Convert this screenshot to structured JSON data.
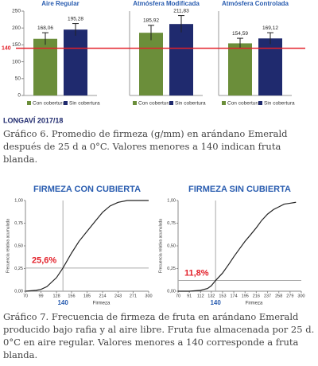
{
  "chart_data": [
    {
      "type": "bar",
      "categories": [
        "Aire Regular",
        "Atmósfera Modificada",
        "Atmósfera Controlada"
      ],
      "series": [
        {
          "name": "Con cobertura",
          "color": "#6b8e3a",
          "values": [
            168.06,
            185.92,
            154.59
          ],
          "value_labels": [
            "168,06",
            "185,92",
            "154,59"
          ],
          "errors": [
            18,
            22,
            15
          ]
        },
        {
          "name": "Sin cobertura",
          "color": "#1f2a6e",
          "values": [
            195.28,
            211.83,
            169.12
          ],
          "value_labels": [
            "195,28",
            "211,83",
            "169,12"
          ],
          "errors": [
            18,
            25,
            17
          ]
        }
      ],
      "ylim": [
        0,
        250
      ],
      "yticks": [
        0,
        50,
        100,
        150,
        200,
        250
      ],
      "reference_line": {
        "value": 140,
        "color": "#e3202a"
      }
    },
    {
      "type": "line",
      "title": "FIRMEZA CON CUBIERTA",
      "xlabel": "Firmeza",
      "ylabel": "Frecuencia relativa acumulada",
      "x": [
        70,
        90,
        99,
        110,
        128,
        140,
        156,
        170,
        185,
        200,
        214,
        228,
        243,
        260,
        271,
        300
      ],
      "series": [
        {
          "color": "#222222",
          "values": [
            0,
            0.01,
            0.02,
            0.05,
            0.15,
            0.256,
            0.42,
            0.55,
            0.66,
            0.77,
            0.87,
            0.94,
            0.98,
            1.0,
            1.0,
            1.0
          ]
        }
      ],
      "xlim": [
        70,
        300
      ],
      "ylim": [
        0,
        1
      ],
      "xticks": [
        70,
        99,
        128,
        156,
        185,
        214,
        243,
        271,
        300
      ],
      "yticks": [
        {
          "value": 0,
          "label": "0,00"
        },
        {
          "value": 0.25,
          "label": "0,25"
        },
        {
          "value": 0.5,
          "label": "0,50"
        },
        {
          "value": 0.75,
          "label": "0,75"
        },
        {
          "value": 1,
          "label": "1,00"
        }
      ],
      "marker_x": 140,
      "annotation": {
        "value": 0.256,
        "label": "25,6%"
      }
    },
    {
      "type": "line",
      "title": "FIRMEZA SIN CUBIERTA",
      "xlabel": "Firmeza",
      "ylabel": "Frecuencia relativa acumulada",
      "x": [
        70,
        91,
        112,
        125,
        132,
        140,
        153,
        165,
        174,
        185,
        195,
        205,
        216,
        226,
        237,
        248,
        258,
        268,
        279,
        290
      ],
      "series": [
        {
          "color": "#222222",
          "values": [
            0,
            0,
            0.01,
            0.03,
            0.06,
            0.118,
            0.2,
            0.3,
            0.38,
            0.47,
            0.55,
            0.62,
            0.7,
            0.78,
            0.85,
            0.9,
            0.93,
            0.96,
            0.97,
            0.98
          ]
        }
      ],
      "xlim": [
        70,
        300
      ],
      "ylim": [
        0,
        1
      ],
      "xticks": [
        70,
        91,
        112,
        132,
        153,
        174,
        195,
        216,
        237,
        258,
        279,
        300
      ],
      "yticks": [
        {
          "value": 0,
          "label": "0,00"
        },
        {
          "value": 0.25,
          "label": "0,25"
        },
        {
          "value": 0.5,
          "label": "0,50"
        },
        {
          "value": 0.75,
          "label": "0,75"
        },
        {
          "value": 1,
          "label": "1,00"
        }
      ],
      "marker_x": 140,
      "annotation": {
        "value": 0.118,
        "label": "11,8%"
      }
    }
  ],
  "footnote": "LONGAVÍ 2017/18",
  "captions": [
    "Gráfico 6. Promedio de firmeza (g/mm) en arándano Emerald después de 25 d a 0°C. Valores menores a 140 indican fruta blanda.",
    "Gráfico 7. Frecuencia de firmeza de fruta en arándano Emerald producido bajo rafia y al aire libre. Fruta fue almacenada por 25 d. 0°C en aire regular. Valores menores a 140 corresponde a fruta blanda."
  ]
}
